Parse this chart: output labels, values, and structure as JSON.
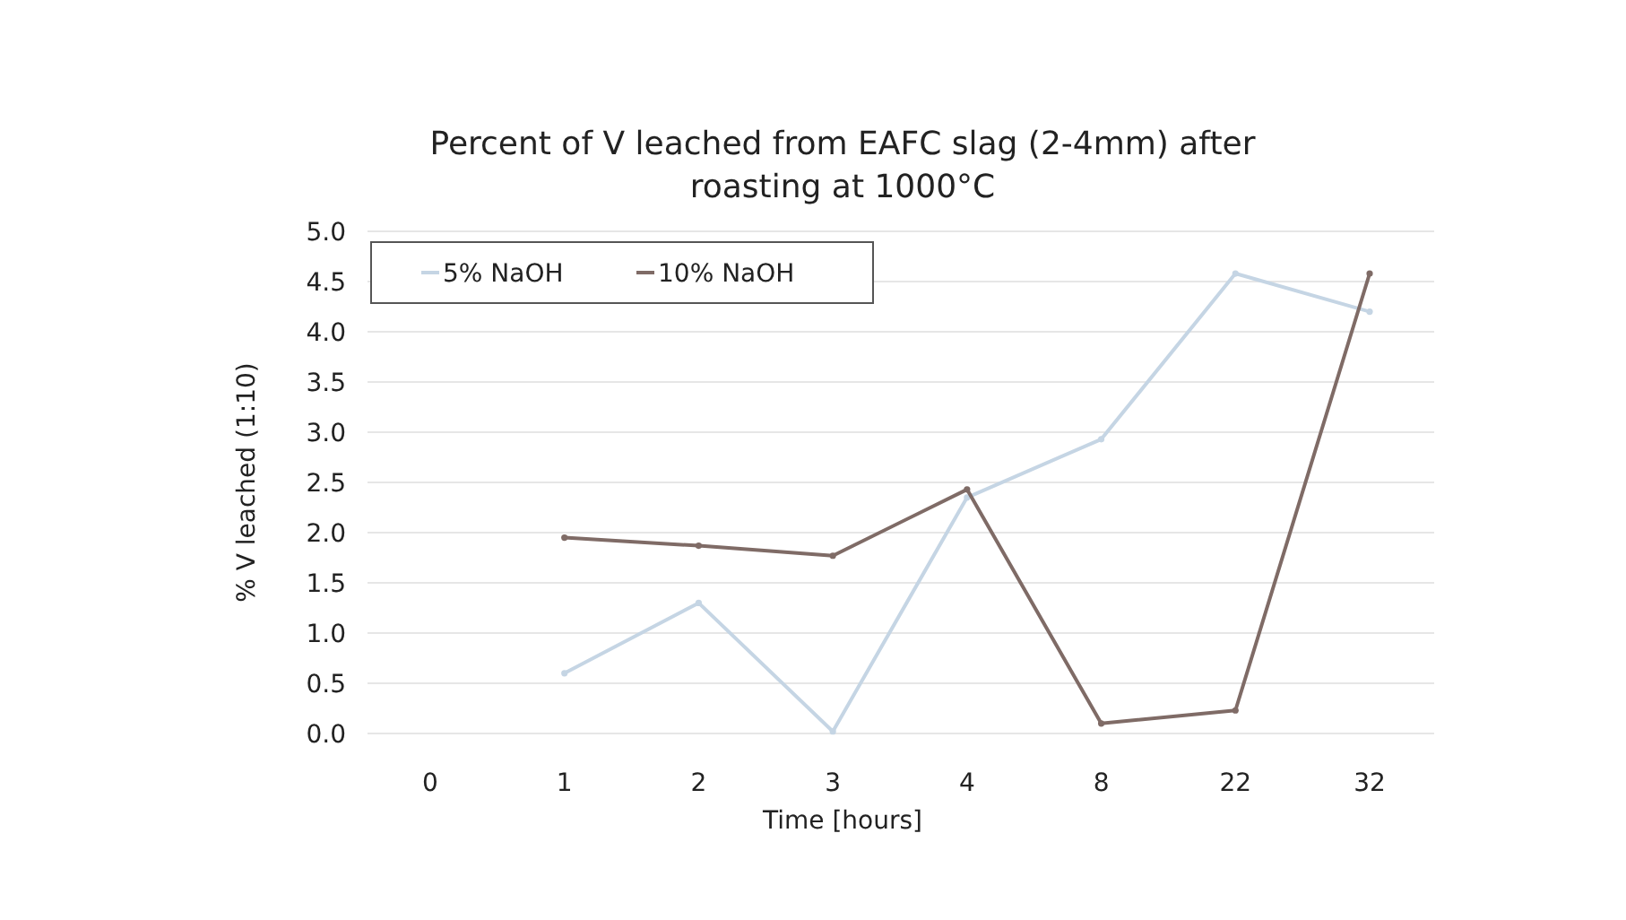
{
  "chart_data": {
    "type": "line",
    "title": "Percent of V leached from EAFC slag (2-4mm) after roasting at 1000°C",
    "xlabel": "Time [hours]",
    "ylabel": "% V leached (1:10)",
    "categories": [
      "0",
      "1",
      "2",
      "3",
      "4",
      "8",
      "22",
      "32"
    ],
    "series": [
      {
        "name": "5% NaOH",
        "color": "#c5d5e4",
        "values": [
          null,
          0.6,
          1.3,
          0.02,
          2.35,
          2.93,
          4.58,
          4.2
        ]
      },
      {
        "name": "10% NaOH",
        "color": "#7f6b66",
        "values": [
          null,
          1.95,
          1.87,
          1.77,
          2.43,
          0.1,
          0.23,
          4.58
        ]
      }
    ],
    "ylim": [
      0,
      5
    ],
    "yticks": [
      {
        "value": 0,
        "label": "0.0"
      },
      {
        "value": 0.5,
        "label": "0.5"
      },
      {
        "value": 1,
        "label": "1.0"
      },
      {
        "value": 1.5,
        "label": "1.5"
      },
      {
        "value": 2,
        "label": "2.0"
      },
      {
        "value": 2.5,
        "label": "2.5"
      },
      {
        "value": 3,
        "label": "3.0"
      },
      {
        "value": 3.5,
        "label": "3.5"
      },
      {
        "value": 4,
        "label": "4.0"
      },
      {
        "value": 4.5,
        "label": "4.5"
      },
      {
        "value": 5,
        "label": "5.0"
      }
    ],
    "grid": "y",
    "legend": "top left",
    "marker": "circle"
  }
}
